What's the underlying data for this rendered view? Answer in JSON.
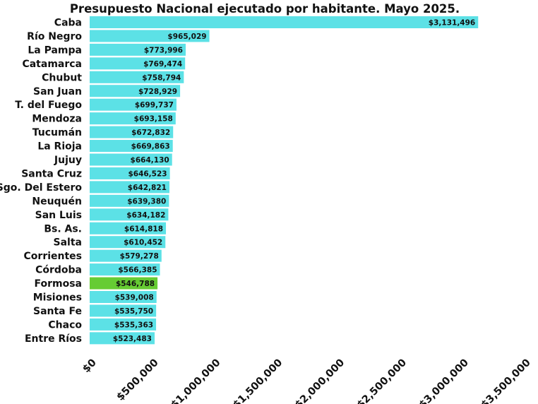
{
  "chart_data": {
    "type": "bar",
    "orientation": "horizontal",
    "title": "Presupuesto Nacional ejecutado por habitante. Mayo 2025.",
    "categories": [
      "Caba",
      "Río Negro",
      "La Pampa",
      "Catamarca",
      "Chubut",
      "San Juan",
      "T. del Fuego",
      "Mendoza",
      "Tucumán",
      "La Rioja",
      "Jujuy",
      "Santa Cruz",
      "Sgo. Del Estero",
      "Neuquén",
      "San Luis",
      "Bs. As.",
      "Salta",
      "Corrientes",
      "Córdoba",
      "Formosa",
      "Misiones",
      "Santa Fe",
      "Chaco",
      "Entre Ríos"
    ],
    "values": [
      3131496,
      965029,
      773996,
      769474,
      758794,
      728929,
      699737,
      693158,
      672832,
      669863,
      664130,
      646523,
      642821,
      639380,
      634182,
      614818,
      610452,
      579278,
      566385,
      546788,
      539008,
      535750,
      535363,
      523483
    ],
    "value_labels": [
      "$3,131,496",
      "$965,029",
      "$773,996",
      "$769,474",
      "$758,794",
      "$728,929",
      "$699,737",
      "$693,158",
      "$672,832",
      "$669,863",
      "$664,130",
      "$646,523",
      "$642,821",
      "$639,380",
      "$634,182",
      "$614,818",
      "$610,452",
      "$579,278",
      "$566,385",
      "$546,788",
      "$539,008",
      "$535,750",
      "$535,363",
      "$523,483"
    ],
    "xlim": [
      0,
      3500000
    ],
    "x_ticks": [
      0,
      500000,
      1000000,
      1500000,
      2000000,
      2500000,
      3000000,
      3500000
    ],
    "x_tick_labels": [
      "$0",
      "$500,000",
      "$1,000,000",
      "$1,500,000",
      "$2,000,000",
      "$2,500,000",
      "$3,000,000",
      "$3,500,000"
    ],
    "colors": {
      "default": "#5ce1e6",
      "highlight": "#66cc33"
    },
    "highlight_category": "Formosa",
    "grid": false,
    "legend": "none"
  }
}
